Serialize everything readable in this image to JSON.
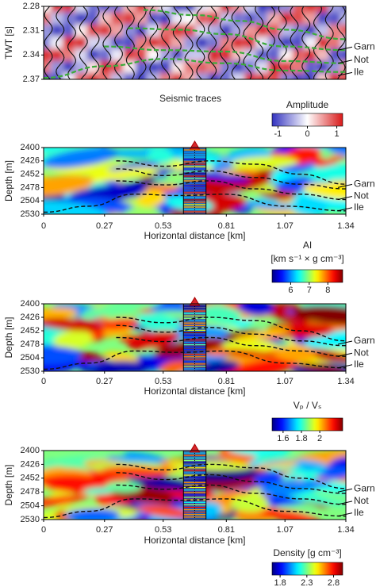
{
  "chart_data": [
    {
      "type": "seismic",
      "ylabel": "TWT [s]",
      "ylim": [
        2.37,
        2.28
      ],
      "yticks": [
        2.28,
        2.31,
        2.34,
        2.37
      ],
      "horizons": [
        "Garn",
        "Not",
        "Ile"
      ],
      "caption": "Seismic traces",
      "colorbar": {
        "label": "Amplitude",
        "clim": [
          -1.2,
          1.2
        ],
        "ticks": [
          -1,
          0,
          1
        ],
        "colormap": "bwr"
      }
    },
    {
      "type": "section",
      "ylabel": "Depth [m]",
      "ylim": [
        2530,
        2400
      ],
      "yticks": [
        2400,
        2426,
        2452,
        2478,
        2504,
        2530
      ],
      "xlabel": "Horizontal distance [km]",
      "xlim": [
        0,
        1.34
      ],
      "xticks": [
        0,
        0.27,
        0.53,
        0.81,
        1.07,
        1.34
      ],
      "horizons": [
        "Garn",
        "Not",
        "Ile"
      ],
      "colorbar": {
        "label": "AI",
        "units": "[km s⁻¹ × g cm⁻³]",
        "clim": [
          5,
          8.8
        ],
        "ticks": [
          6,
          7,
          8
        ],
        "colormap": "jet"
      }
    },
    {
      "type": "section",
      "ylabel": "Depth [m]",
      "ylim": [
        2530,
        2400
      ],
      "yticks": [
        2400,
        2426,
        2452,
        2478,
        2504,
        2530
      ],
      "xlabel": "Horizontal distance [km]",
      "xlim": [
        0,
        1.34
      ],
      "xticks": [
        0,
        0.27,
        0.53,
        0.81,
        1.07,
        1.34
      ],
      "horizons": [
        "Garn",
        "Not",
        "Ile"
      ],
      "colorbar": {
        "label": "Vₚ / Vₛ",
        "clim": [
          1.48,
          2.25
        ],
        "ticks": [
          1.6,
          1.8,
          2
        ],
        "colormap": "jet"
      }
    },
    {
      "type": "section",
      "ylabel": "Depth [m]",
      "ylim": [
        2530,
        2400
      ],
      "yticks": [
        2400,
        2426,
        2452,
        2478,
        2504,
        2530
      ],
      "xlabel": "Horizontal distance [km]",
      "xlim": [
        0,
        1.34
      ],
      "xticks": [
        0,
        0.27,
        0.53,
        0.81,
        1.07,
        1.34
      ],
      "horizons": [
        "Garn",
        "Not",
        "Ile"
      ],
      "colorbar": {
        "label": "Density [g cm⁻³]",
        "clim": [
          1.65,
          2.97
        ],
        "ticks": [
          1.8,
          2.3,
          2.8
        ],
        "colormap": "jet"
      }
    }
  ]
}
